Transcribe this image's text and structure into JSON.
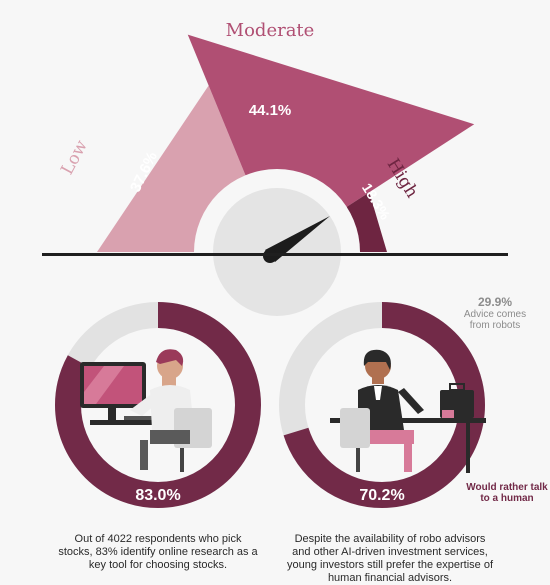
{
  "chart_data": [
    {
      "type": "gauge",
      "categories": [
        "Low",
        "Moderate",
        "High"
      ],
      "values": [
        37.6,
        44.1,
        18.3
      ],
      "value_labels": [
        "37.6%",
        "44.1%",
        "18.3%"
      ],
      "colors": [
        "#d9a1af",
        "#b04f73",
        "#6e2541"
      ]
    },
    {
      "type": "donut",
      "value": 83.0,
      "value_label": "83.0%",
      "caption": "Out of 4022 respondents who pick stocks, 83% identify online research as a key tool for choosing stocks.",
      "colors": [
        "#722a48",
        "#e2e2e2"
      ]
    },
    {
      "type": "donut",
      "value": 70.2,
      "value_label": "70.2%",
      "segments": [
        {
          "value": 70.2,
          "label": "Would rather talk to a human",
          "color": "#722a48"
        },
        {
          "value": 29.9,
          "label": "29.9%",
          "sublabel": "Advice comes from robots",
          "color": "#e2e2e2"
        }
      ],
      "caption": "Despite the availability of robo advisors and other AI-driven investment services, young investors still prefer the expertise of human financial advisors."
    }
  ]
}
